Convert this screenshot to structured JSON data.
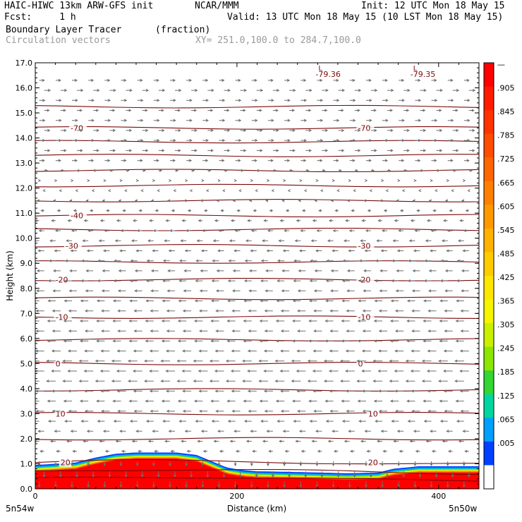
{
  "header": {
    "line1_left": "HAIC-HIWC 13km ARW-GFS init",
    "line1_mid": "NCAR/MMM",
    "line1_right": "Init: 12 UTC Mon 18 May 15",
    "line2_left": "Fcst:     1 h",
    "line2_right": "Valid: 13 UTC Mon 18 May 15 (10 LST Mon 18 May 15)",
    "line3_left": "Boundary Layer Tracer",
    "line3_mid": "(fraction)",
    "line4_left": "Circulation vectors",
    "line4_right": "XY= 251.0,100.0 to 284.7,100.0"
  },
  "footer": {
    "left_label": "5n54w",
    "right_label": "5n50w"
  },
  "chart_data": {
    "type": "cross-section",
    "xlabel": "Distance (km)",
    "ylabel": "Height (km)",
    "xlim": [
      0,
      440
    ],
    "ylim": [
      0,
      17
    ],
    "x_ticks": [
      0,
      200,
      400
    ],
    "x_tick_labels": [
      "0",
      "200",
      "400"
    ],
    "y_ticks": [
      0,
      1,
      2,
      3,
      4,
      5,
      6,
      7,
      8,
      9,
      10,
      11,
      12,
      13,
      14,
      15,
      16,
      17
    ],
    "y_tick_labels": [
      "0.0",
      "1.0",
      "2.0",
      "3.0",
      "4.0",
      "5.0",
      "6.0",
      "7.0",
      "8.0",
      "9.0",
      "10.0",
      "11.0",
      "12.0",
      "13.0",
      "14.0",
      "15.0",
      "16.0",
      "17.0"
    ],
    "tracer_top_km": {
      "x": [
        0,
        20,
        40,
        60,
        80,
        100,
        120,
        140,
        160,
        175,
        190,
        205,
        220,
        250,
        280,
        310,
        340,
        355,
        380,
        410,
        440
      ],
      "y": [
        0.95,
        1.0,
        1.05,
        1.25,
        1.4,
        1.45,
        1.45,
        1.45,
        1.35,
        1.1,
        0.85,
        0.75,
        0.7,
        0.68,
        0.65,
        0.62,
        0.65,
        0.8,
        0.9,
        0.9,
        0.9
      ]
    },
    "temperature_contours": [
      {
        "label": "20",
        "y": 1.05,
        "label_x": [
          25,
          330
        ]
      },
      {
        "label": "10",
        "y": 3.0,
        "label_x": [
          20,
          330
        ]
      },
      {
        "label": "0",
        "y": 5.0,
        "label_x": [
          20,
          320
        ]
      },
      {
        "label": "-10",
        "y": 6.85,
        "label_x": [
          20,
          320
        ]
      },
      {
        "label": "-20",
        "y": 8.35,
        "label_x": [
          20,
          320
        ]
      },
      {
        "label": "-30",
        "y": 9.7,
        "label_x": [
          30,
          320
        ]
      },
      {
        "label": "-40",
        "y": 10.9,
        "label_x": [
          35
        ]
      },
      {
        "label": "-70",
        "y": 14.4,
        "label_x": [
          35,
          320
        ]
      }
    ],
    "unlabeled_contour_levels_km": [
      0.4,
      0.7,
      2.0,
      3.95,
      5.95,
      7.6,
      9.05,
      10.35,
      11.5,
      12.1,
      12.7,
      13.3,
      13.85,
      15.25
    ],
    "low_pressure_labels": [
      {
        "text": "-79.36",
        "x": 278
      },
      {
        "text": "-79.35",
        "x": 372
      }
    ],
    "low_marker": "L",
    "colorbar": {
      "labels": [
        "—",
        ".905",
        ".845",
        ".785",
        ".725",
        ".665",
        ".605",
        ".545",
        ".485",
        ".425",
        ".365",
        ".305",
        ".245",
        ".185",
        ".125",
        ".065",
        ".005"
      ],
      "colors": [
        "#ff0000",
        "#ff1a00",
        "#ff3300",
        "#ff4d00",
        "#ff6600",
        "#ff8000",
        "#ff9900",
        "#ffb300",
        "#ffcc00",
        "#ffe600",
        "#f5f500",
        "#c8f000",
        "#8ce600",
        "#33d633",
        "#00d6a0",
        "#00a0ff",
        "#0040ff",
        "#ffffff"
      ]
    },
    "wind_vectors": {
      "rows_km": [
        0.3,
        0.7,
        1.1,
        1.5,
        1.9,
        2.3,
        2.7,
        3.1,
        3.5,
        3.9,
        4.3,
        4.7,
        5.1,
        5.5,
        5.9,
        6.3,
        6.7,
        7.1,
        7.5,
        7.9,
        8.3,
        8.7,
        9.1,
        9.5,
        9.9,
        10.3,
        10.7,
        11.1,
        11.5,
        11.9,
        12.3,
        12.7,
        13.1,
        13.5,
        13.9,
        14.3,
        14.7,
        15.1,
        15.5,
        15.9,
        16.3
      ],
      "u_by_row": [
        0,
        0,
        0,
        -0.4,
        -0.5,
        -0.6,
        -0.7,
        -0.8,
        -0.8,
        -0.85,
        -0.9,
        -0.9,
        -0.9,
        -0.85,
        -0.8,
        -0.8,
        -0.8,
        -0.8,
        -0.75,
        -0.75,
        -0.7,
        -0.7,
        -0.65,
        -0.6,
        -0.55,
        -0.5,
        -0.4,
        -0.3,
        -0.2,
        -0.1,
        0.1,
        0.3,
        0.5,
        0.55,
        0.55,
        0.55,
        0.55,
        0.5,
        0.55,
        0.6,
        0.5
      ],
      "w_by_row": [
        -0.8,
        -0.8,
        -0.6,
        0,
        0,
        0,
        0,
        0,
        0,
        0,
        0,
        0,
        0,
        0,
        0,
        0,
        0,
        0,
        0,
        0,
        0,
        0,
        0,
        0,
        0,
        0,
        0,
        0,
        0,
        0,
        0,
        0,
        0,
        0,
        0,
        0,
        0,
        0,
        0,
        0,
        0
      ]
    }
  }
}
